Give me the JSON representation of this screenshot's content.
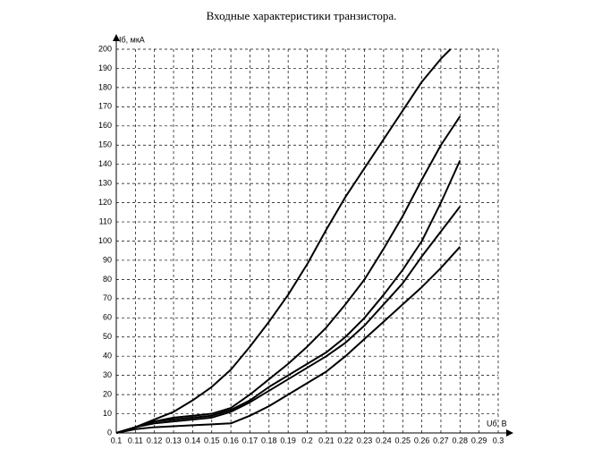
{
  "chart_data": {
    "type": "line",
    "title": "Входные характеристики транзистора.",
    "y_label": "Iб, мкА",
    "x_label": "Uб, В",
    "xlim": [
      0.1,
      0.3
    ],
    "ylim": [
      0,
      200
    ],
    "xticks": [
      0.1,
      0.11,
      0.12,
      0.13,
      0.14,
      0.15,
      0.16,
      0.17,
      0.18,
      0.19,
      0.2,
      0.21,
      0.22,
      0.23,
      0.24,
      0.25,
      0.26,
      0.27,
      0.28,
      0.29,
      0.3
    ],
    "yticks": [
      0,
      10,
      20,
      30,
      40,
      50,
      60,
      70,
      80,
      90,
      100,
      110,
      120,
      130,
      140,
      150,
      160,
      170,
      180,
      190,
      200
    ],
    "grid": true,
    "series": [
      {
        "color": "#000000",
        "x": [
          0.1,
          0.11,
          0.12,
          0.13,
          0.14,
          0.15,
          0.16,
          0.17,
          0.18,
          0.19,
          0.2,
          0.21,
          0.22,
          0.23,
          0.24,
          0.25,
          0.26,
          0.27,
          0.275
        ],
        "values": [
          0,
          3,
          7,
          11,
          17,
          24,
          33,
          45,
          58,
          72,
          88,
          106,
          123,
          138,
          153,
          168,
          183,
          195,
          200
        ]
      },
      {
        "color": "#000000",
        "x": [
          0.1,
          0.11,
          0.12,
          0.13,
          0.14,
          0.15,
          0.16,
          0.17,
          0.18,
          0.19,
          0.2,
          0.21,
          0.22,
          0.23,
          0.24,
          0.25,
          0.26,
          0.27,
          0.28
        ],
        "values": [
          0,
          3,
          6,
          8,
          9,
          10,
          13,
          20,
          28,
          36,
          45,
          55,
          67,
          80,
          96,
          113,
          132,
          150,
          165
        ]
      },
      {
        "color": "#000000",
        "x": [
          0.1,
          0.11,
          0.12,
          0.13,
          0.14,
          0.15,
          0.16,
          0.17,
          0.18,
          0.19,
          0.2,
          0.21,
          0.22,
          0.23,
          0.24,
          0.25,
          0.26,
          0.27,
          0.28
        ],
        "values": [
          0,
          3,
          6,
          7,
          8,
          9,
          12,
          17,
          24,
          30,
          36,
          42,
          50,
          60,
          72,
          85,
          100,
          120,
          142
        ]
      },
      {
        "color": "#000000",
        "x": [
          0.1,
          0.11,
          0.12,
          0.13,
          0.14,
          0.15,
          0.16,
          0.17,
          0.18,
          0.19,
          0.2,
          0.21,
          0.22,
          0.23,
          0.24,
          0.25,
          0.26,
          0.27,
          0.28
        ],
        "values": [
          0,
          3,
          5,
          6,
          7,
          8,
          11,
          16,
          22,
          28,
          34,
          40,
          47,
          56,
          67,
          78,
          92,
          105,
          118
        ]
      },
      {
        "color": "#000000",
        "x": [
          0.1,
          0.11,
          0.12,
          0.13,
          0.14,
          0.15,
          0.16,
          0.17,
          0.18,
          0.19,
          0.2,
          0.21,
          0.22,
          0.23,
          0.24,
          0.25,
          0.26,
          0.27,
          0.28
        ],
        "values": [
          0,
          2,
          3,
          3.5,
          4,
          4.5,
          5,
          9,
          14,
          20,
          26,
          32,
          40,
          49,
          58,
          67,
          76,
          86,
          97
        ]
      }
    ]
  }
}
